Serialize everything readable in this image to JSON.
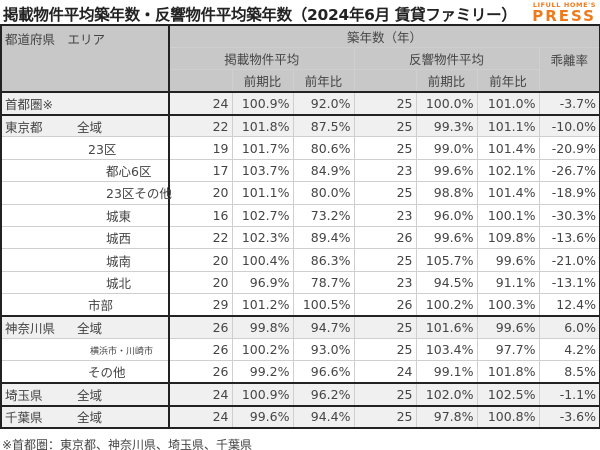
{
  "header": {
    "title": "掲載物件平均築年数・反響物件平均築年数（2024年6月 賃貸ファミリー）",
    "logo_small": "LIFULL HOME'S",
    "logo_big": "PRESS",
    "brand_color": "#ee7a1e"
  },
  "table": {
    "col_area": "都道府県　エリア",
    "col_age": "築年数（年）",
    "group_listed": "掲載物件平均",
    "group_inquiry": "反響物件平均",
    "col_divergence": "乖離率",
    "col_qoq": "前期比",
    "col_yoy": "前年比",
    "rows": [
      {
        "pref": "首都圏※",
        "area": "",
        "level": 0,
        "l_age": "24",
        "l_qoq": "100.9%",
        "l_yoy": "92.0%",
        "i_age": "25",
        "i_qoq": "100.0%",
        "i_yoy": "101.0%",
        "div": "-3.7%"
      },
      {
        "pref": "東京都",
        "area": "全域",
        "level": 0,
        "l_age": "22",
        "l_qoq": "101.8%",
        "l_yoy": "87.5%",
        "i_age": "25",
        "i_qoq": "99.3%",
        "i_yoy": "101.1%",
        "div": "-10.0%"
      },
      {
        "pref": "",
        "area": "23区",
        "level": 1,
        "l_age": "19",
        "l_qoq": "101.7%",
        "l_yoy": "80.6%",
        "i_age": "25",
        "i_qoq": "99.0%",
        "i_yoy": "101.4%",
        "div": "-20.9%"
      },
      {
        "pref": "",
        "area": "都心6区",
        "level": 2,
        "l_age": "17",
        "l_qoq": "103.7%",
        "l_yoy": "84.9%",
        "i_age": "23",
        "i_qoq": "99.6%",
        "i_yoy": "102.1%",
        "div": "-26.7%"
      },
      {
        "pref": "",
        "area": "23区その他",
        "level": 2,
        "l_age": "20",
        "l_qoq": "101.1%",
        "l_yoy": "80.0%",
        "i_age": "25",
        "i_qoq": "98.8%",
        "i_yoy": "101.4%",
        "div": "-18.9%"
      },
      {
        "pref": "",
        "area": "城東",
        "level": 2,
        "l_age": "16",
        "l_qoq": "102.7%",
        "l_yoy": "73.2%",
        "i_age": "23",
        "i_qoq": "96.0%",
        "i_yoy": "100.1%",
        "div": "-30.3%"
      },
      {
        "pref": "",
        "area": "城西",
        "level": 2,
        "l_age": "22",
        "l_qoq": "102.3%",
        "l_yoy": "89.4%",
        "i_age": "26",
        "i_qoq": "99.6%",
        "i_yoy": "109.8%",
        "div": "-13.6%"
      },
      {
        "pref": "",
        "area": "城南",
        "level": 2,
        "l_age": "20",
        "l_qoq": "100.4%",
        "l_yoy": "86.3%",
        "i_age": "25",
        "i_qoq": "105.7%",
        "i_yoy": "99.6%",
        "div": "-21.0%"
      },
      {
        "pref": "",
        "area": "城北",
        "level": 2,
        "l_age": "20",
        "l_qoq": "96.9%",
        "l_yoy": "78.7%",
        "i_age": "23",
        "i_qoq": "94.5%",
        "i_yoy": "91.1%",
        "div": "-13.1%"
      },
      {
        "pref": "",
        "area": "市部",
        "level": 1,
        "l_age": "29",
        "l_qoq": "101.2%",
        "l_yoy": "100.5%",
        "i_age": "26",
        "i_qoq": "100.2%",
        "i_yoy": "100.3%",
        "div": "12.4%"
      },
      {
        "pref": "神奈川県",
        "area": "全域",
        "level": 0,
        "l_age": "26",
        "l_qoq": "99.8%",
        "l_yoy": "94.7%",
        "i_age": "25",
        "i_qoq": "101.6%",
        "i_yoy": "99.6%",
        "div": "6.0%"
      },
      {
        "pref": "",
        "area": "横浜市・川崎市",
        "level": 1,
        "l_age": "26",
        "l_qoq": "100.2%",
        "l_yoy": "93.0%",
        "i_age": "25",
        "i_qoq": "103.4%",
        "i_yoy": "97.7%",
        "div": "4.2%"
      },
      {
        "pref": "",
        "area": "その他",
        "level": 1,
        "l_age": "26",
        "l_qoq": "99.2%",
        "l_yoy": "96.6%",
        "i_age": "24",
        "i_qoq": "99.1%",
        "i_yoy": "101.8%",
        "div": "8.5%"
      },
      {
        "pref": "埼玉県",
        "area": "全域",
        "level": 0,
        "l_age": "24",
        "l_qoq": "100.9%",
        "l_yoy": "96.2%",
        "i_age": "25",
        "i_qoq": "102.0%",
        "i_yoy": "102.5%",
        "div": "-1.1%"
      },
      {
        "pref": "千葉県",
        "area": "全域",
        "level": 0,
        "l_age": "24",
        "l_qoq": "99.6%",
        "l_yoy": "94.4%",
        "i_age": "25",
        "i_qoq": "97.8%",
        "i_yoy": "100.8%",
        "div": "-3.6%"
      }
    ]
  },
  "footnote": "※首都圏：東京都、神奈川県、埼玉県、千葉県"
}
